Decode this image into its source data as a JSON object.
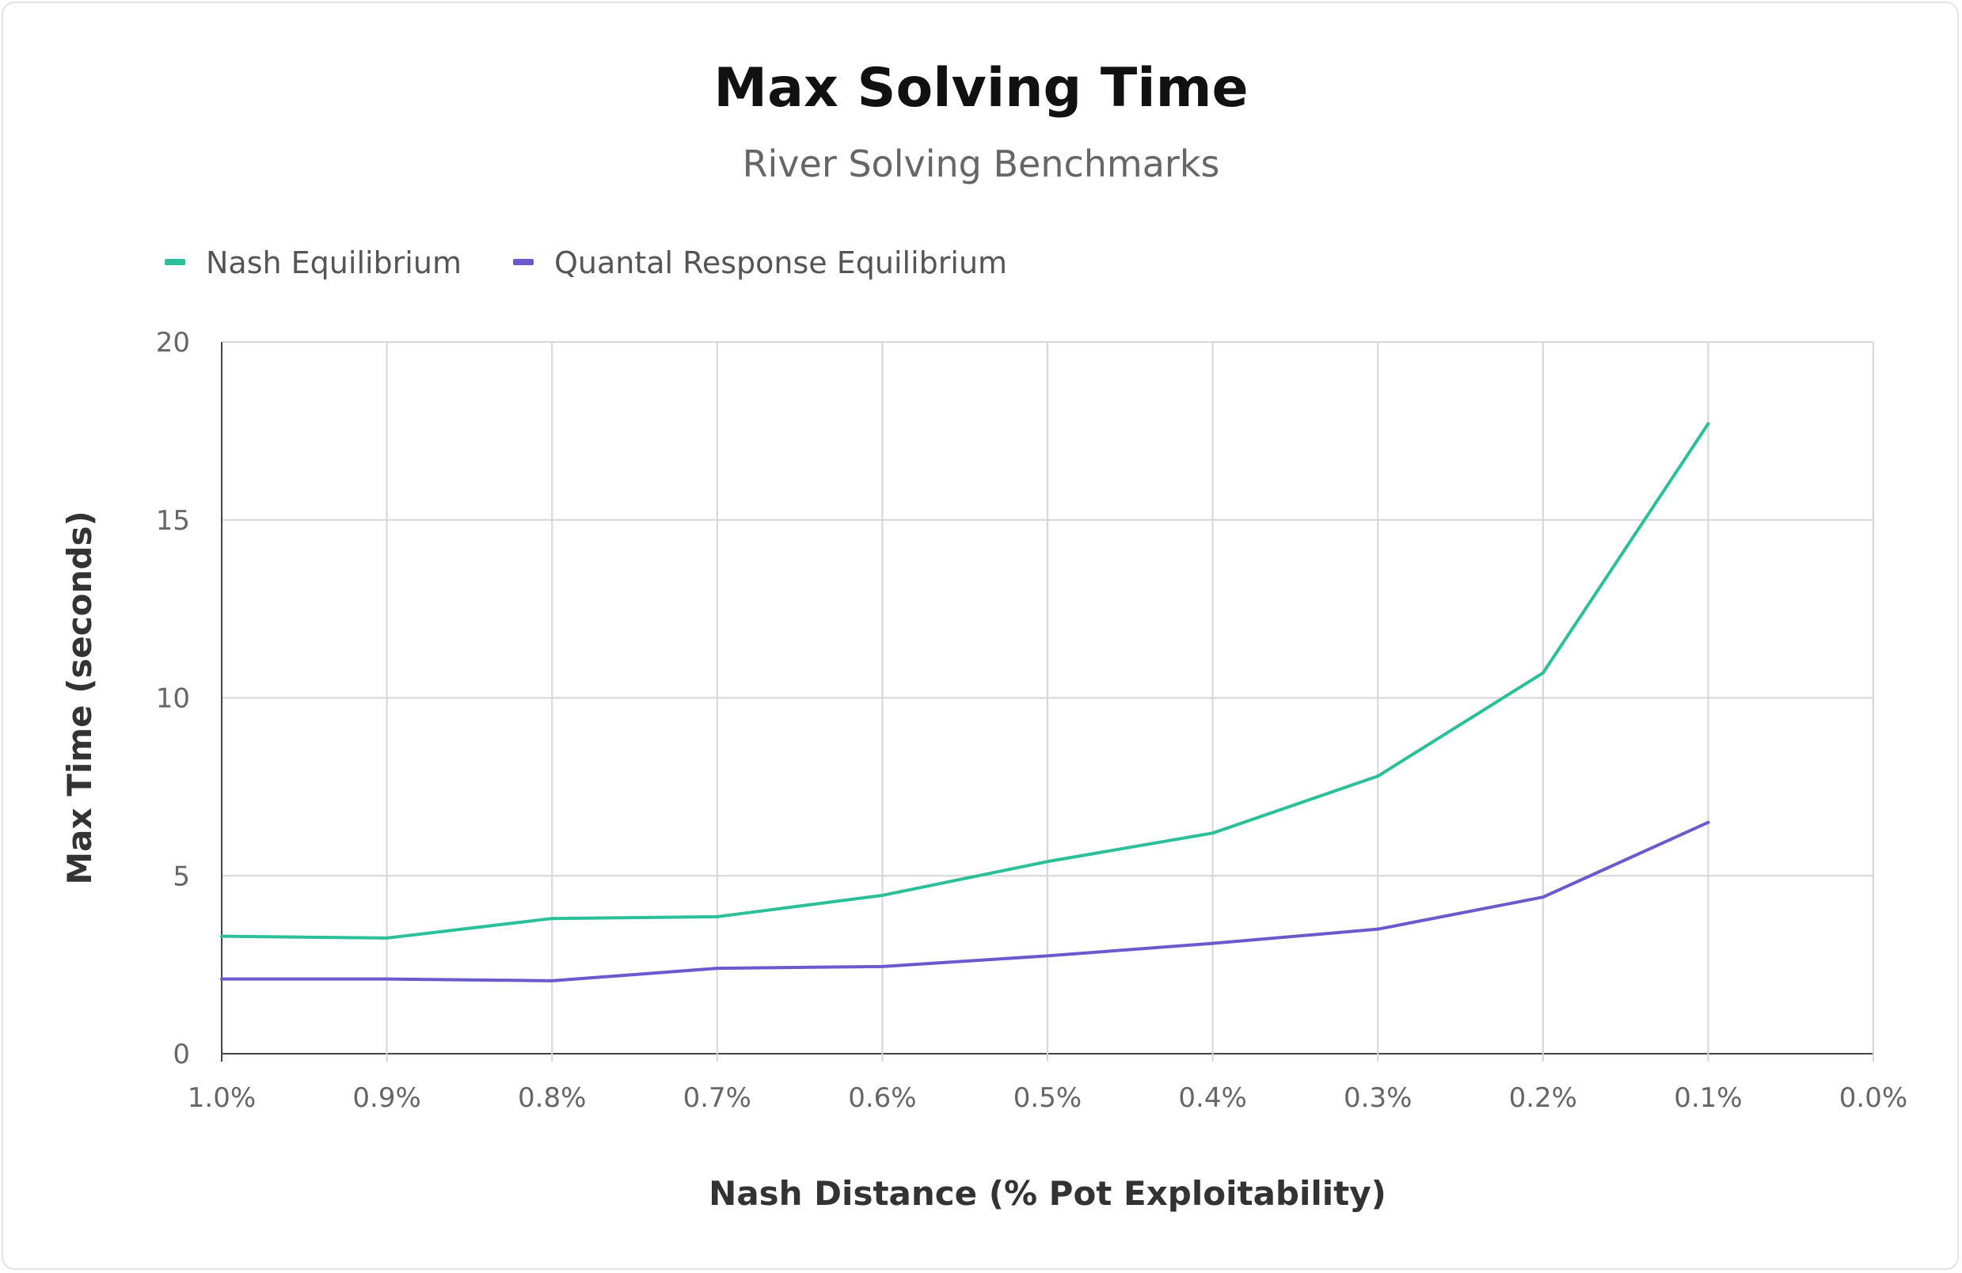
{
  "chart_data": {
    "type": "line",
    "title": "Max Solving Time",
    "subtitle": "River Solving Benchmarks",
    "xlabel": "Nash Distance (% Pot Exploitability)",
    "ylabel": "Max Time (seconds)",
    "categories": [
      "1.0%",
      "0.9%",
      "0.8%",
      "0.7%",
      "0.6%",
      "0.5%",
      "0.4%",
      "0.3%",
      "0.2%",
      "0.1%",
      "0.0%"
    ],
    "yticks": [
      "0",
      "5",
      "10",
      "15",
      "20"
    ],
    "ylim": [
      0,
      20
    ],
    "grid": true,
    "legend_position": "top-left",
    "series": [
      {
        "name": "Nash Equilibrium",
        "color": "#2bbf9a",
        "values": [
          3.3,
          3.25,
          3.8,
          3.85,
          4.45,
          5.4,
          6.2,
          7.8,
          10.7,
          17.7,
          null
        ]
      },
      {
        "name": "Quantal Response Equilibrium",
        "color": "#6a5acd",
        "values": [
          2.1,
          2.1,
          2.05,
          2.4,
          2.45,
          2.75,
          3.1,
          3.5,
          4.4,
          6.5,
          null
        ]
      }
    ]
  }
}
